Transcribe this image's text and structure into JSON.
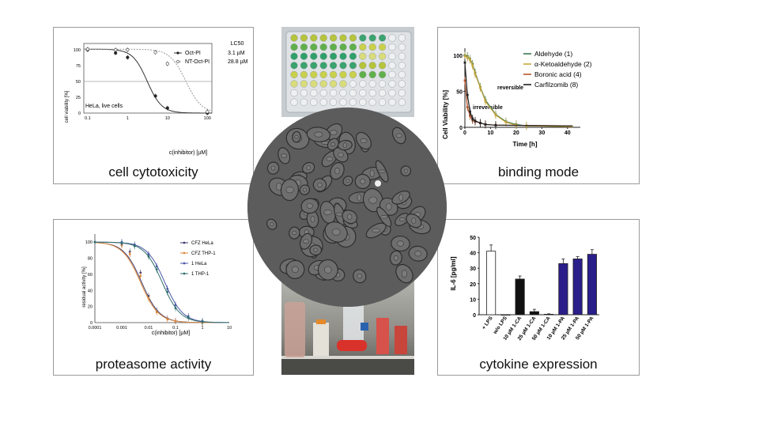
{
  "panels": {
    "cytotox": {
      "caption": "cell cytotoxicity",
      "ylabel": "cell viability [%]",
      "xlabel": "c(inhibitor) [µM]",
      "yticks": [
        "100",
        "75",
        "50",
        "25",
        "0"
      ],
      "xticks": [
        "0.1",
        "1",
        "10",
        "100"
      ],
      "legend_header": "LC50",
      "legend": [
        {
          "name": "Oct-PI",
          "value": "3.1 µM"
        },
        {
          "name": "NT-Oct-PI",
          "value": "28.8 µM"
        }
      ],
      "note": "HeLa, live cells"
    },
    "binding": {
      "caption": "binding mode",
      "ylabel": "Cell Viability [%]",
      "xlabel": "Time [h]",
      "yticks": [
        "100",
        "50",
        "0"
      ],
      "xticks": [
        "0",
        "10",
        "20",
        "30",
        "40"
      ],
      "legend": [
        {
          "name": "Aldehyde (1)",
          "color": "#3a7a52"
        },
        {
          "name": "α-Ketoaldehyde (2)",
          "color": "#c8a73e"
        },
        {
          "name": "Boronic acid (4)",
          "color": "#b5562f"
        },
        {
          "name": "Carfilzomib (8)",
          "color": "#222222"
        }
      ],
      "annotations": [
        "reversible",
        "irreversible"
      ]
    },
    "proteasome": {
      "caption": "proteasome activity",
      "ylabel": "residual activity [%]",
      "xlabel": "c(inhibitor) [µM]",
      "yticks": [
        "100",
        "80",
        "60",
        "40",
        "20",
        "0"
      ],
      "xticks": [
        "0.0001",
        "0.001",
        "0.01",
        "0.1",
        "1",
        "10"
      ],
      "legend": [
        {
          "name": "CFZ HeLa",
          "color": "#3b3b6e"
        },
        {
          "name": "CFZ THP-1",
          "color": "#e08a3c"
        },
        {
          "name": "1 HeLa",
          "color": "#4a56a8"
        },
        {
          "name": "1 THP-1",
          "color": "#2f6f6a"
        }
      ]
    },
    "cytokine": {
      "caption": "cytokine expression",
      "ylabel": "IL-6 [pg/ml]",
      "yticks": [
        "50",
        "40",
        "30",
        "20",
        "10",
        "0"
      ]
    }
  },
  "chart_data": [
    {
      "type": "line",
      "title": "",
      "xlabel": "c(inhibitor) [µM]",
      "ylabel": "cell viability [%]",
      "xscale": "log",
      "xlim": [
        0.08,
        130
      ],
      "ylim": [
        0,
        110
      ],
      "series": [
        {
          "name": "Oct-PI",
          "x": [
            0.1,
            0.5,
            1,
            5,
            10,
            100
          ],
          "y": [
            100,
            95,
            88,
            27,
            8,
            0
          ]
        },
        {
          "name": "NT-Oct-PI",
          "x": [
            0.1,
            0.5,
            1,
            5,
            10,
            100
          ],
          "y": [
            101,
            100,
            100,
            96,
            78,
            2
          ]
        }
      ],
      "reference_line_y": 50
    },
    {
      "type": "line",
      "xlabel": "Time [h]",
      "ylabel": "Cell Viability [%]",
      "xlim": [
        0,
        45
      ],
      "ylim": [
        0,
        110
      ],
      "series": [
        {
          "name": "Aldehyde (1)",
          "x": [
            0,
            1,
            2,
            3,
            4,
            6,
            8,
            12,
            16,
            20,
            24
          ],
          "y": [
            100,
            99,
            95,
            88,
            76,
            56,
            38,
            18,
            8,
            4,
            2
          ]
        },
        {
          "name": "α-Ketoaldehyde (2)",
          "x": [
            0,
            1,
            2,
            3,
            4,
            6,
            8,
            12,
            16,
            20,
            24
          ],
          "y": [
            99,
            97,
            94,
            86,
            74,
            55,
            36,
            17,
            7,
            3,
            2
          ]
        },
        {
          "name": "Boronic acid (4)",
          "x": [
            0,
            1,
            2,
            3,
            4,
            6,
            8,
            12
          ],
          "y": [
            65,
            28,
            16,
            10,
            8,
            6,
            4,
            3
          ]
        },
        {
          "name": "Carfilzomib (8)",
          "x": [
            0,
            1,
            2,
            3,
            4,
            6,
            8,
            12
          ],
          "y": [
            90,
            45,
            22,
            12,
            9,
            6,
            4,
            3
          ]
        }
      ]
    },
    {
      "type": "line",
      "xlabel": "c(inhibitor) [µM]",
      "ylabel": "residual activity [%]",
      "xscale": "log",
      "xlim": [
        0.0001,
        10
      ],
      "ylim": [
        0,
        110
      ],
      "series": [
        {
          "name": "CFZ HeLa",
          "x": [
            0.0001,
            0.001,
            0.002,
            0.005,
            0.01,
            0.02,
            0.05,
            0.1,
            1
          ],
          "y": [
            100,
            97,
            88,
            62,
            33,
            15,
            5,
            2,
            0
          ]
        },
        {
          "name": "CFZ THP-1",
          "x": [
            0.0001,
            0.001,
            0.002,
            0.005,
            0.01,
            0.02,
            0.05,
            0.1,
            1
          ],
          "y": [
            100,
            96,
            85,
            58,
            30,
            13,
            4,
            2,
            0
          ]
        },
        {
          "name": "1 HeLa",
          "x": [
            0.0001,
            0.001,
            0.003,
            0.01,
            0.02,
            0.05,
            0.1,
            0.3,
            1
          ],
          "y": [
            100,
            100,
            97,
            85,
            70,
            42,
            22,
            8,
            2
          ]
        },
        {
          "name": "1 THP-1",
          "x": [
            0.0001,
            0.001,
            0.003,
            0.01,
            0.02,
            0.05,
            0.1,
            0.3,
            1
          ],
          "y": [
            100,
            99,
            95,
            82,
            66,
            38,
            18,
            6,
            1
          ]
        }
      ]
    },
    {
      "type": "bar",
      "ylabel": "IL-6 [pg/ml]",
      "ylim": [
        0,
        50
      ],
      "categories": [
        "+ LPS",
        "w/o LPS",
        "10 µM 1-CA",
        "25 µM 1-CA",
        "50 µM 1-CA",
        "10 µM 1-PA",
        "25 µM 1-PA",
        "50 µM 1-PA"
      ],
      "values": [
        41,
        0,
        23,
        2,
        0.3,
        33,
        36,
        39
      ],
      "errors": [
        4,
        0,
        2,
        1.5,
        0.3,
        3,
        1.5,
        3
      ],
      "colors": [
        "#ffffff",
        "#ffffff",
        "#111111",
        "#111111",
        "#111111",
        "#2a1e8a",
        "#2a1e8a",
        "#2a1e8a"
      ]
    }
  ]
}
